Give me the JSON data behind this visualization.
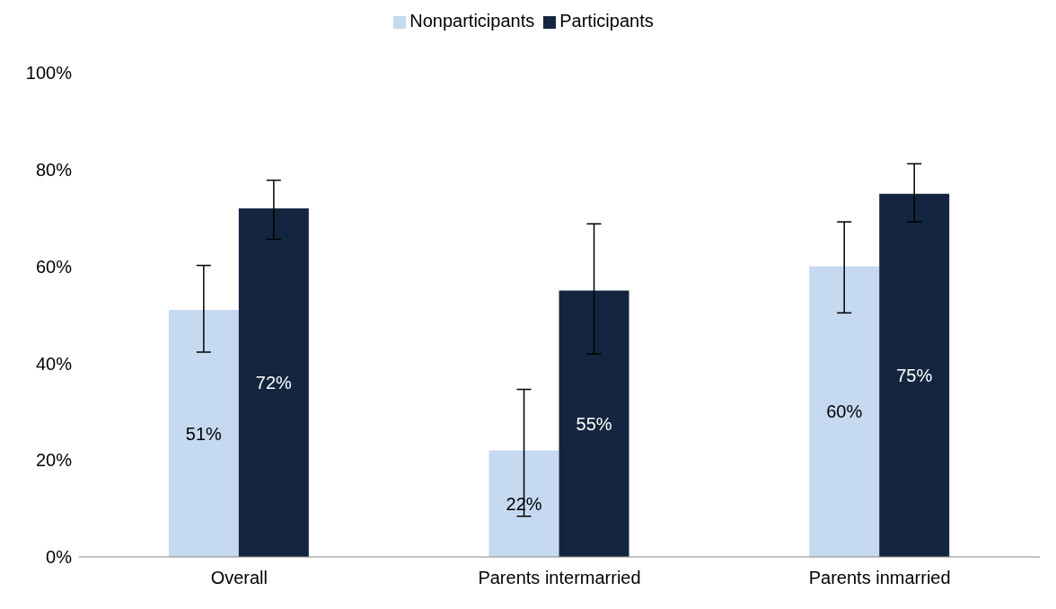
{
  "chart_data": {
    "type": "bar",
    "categories": [
      "Overall",
      "Parents intermarried",
      "Parents inmarried"
    ],
    "series": [
      {
        "name": "Nonparticipants",
        "color": "#c5d9f1",
        "values": [
          51,
          22,
          60
        ],
        "value_labels": [
          "51%",
          "22%",
          "60%"
        ],
        "errors": [
          [
            42.3,
            60.2
          ],
          [
            8.4,
            34.6
          ],
          [
            50.4,
            69.2
          ]
        ]
      },
      {
        "name": "Participants",
        "color": "#14263f",
        "values": [
          72,
          55,
          75
        ],
        "value_labels": [
          "72%",
          "55%",
          "75%"
        ],
        "errors": [
          [
            65.6,
            77.8
          ],
          [
            41.9,
            68.8
          ],
          [
            69.2,
            81.2
          ]
        ]
      }
    ],
    "ylim": [
      0,
      100
    ],
    "yticks": [
      {
        "value": 0,
        "label": "0%"
      },
      {
        "value": 20,
        "label": "20%"
      },
      {
        "value": 40,
        "label": "40%"
      },
      {
        "value": 60,
        "label": "60%"
      },
      {
        "value": 80,
        "label": "80%"
      },
      {
        "value": 100,
        "label": "100%"
      }
    ],
    "grid": false,
    "legend": "top"
  }
}
